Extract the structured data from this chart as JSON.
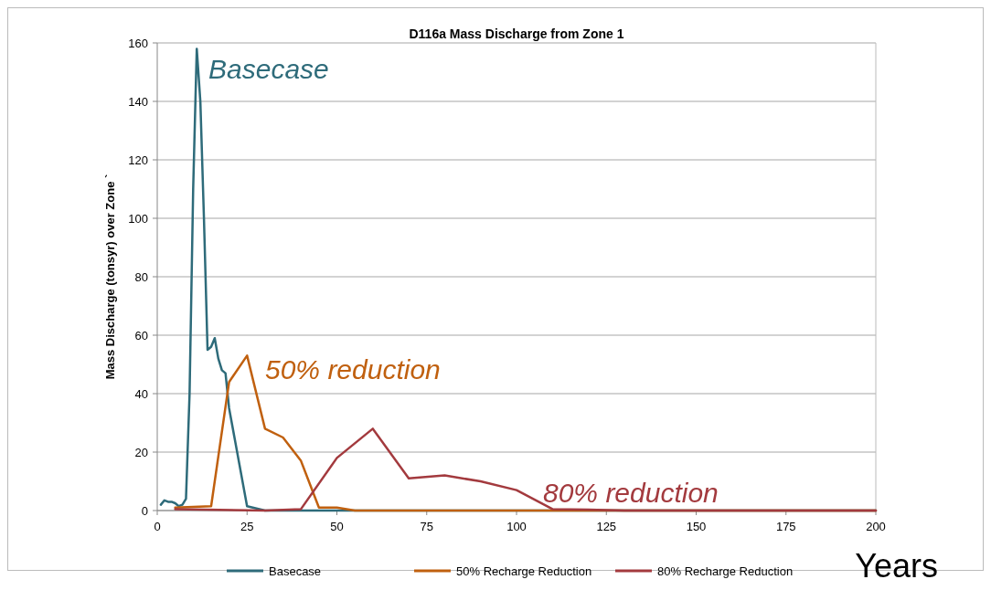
{
  "chart_data": {
    "type": "line",
    "title": "D116a Mass Discharge from Zone 1",
    "xlabel": "Years",
    "ylabel": "Mass Discharge (tonsyr) over Zone `",
    "xlim": [
      0,
      200
    ],
    "xticks": [
      0,
      25,
      50,
      75,
      100,
      125,
      150,
      175,
      200
    ],
    "ylim": [
      0,
      160
    ],
    "yticks": [
      0,
      20,
      40,
      60,
      80,
      100,
      120,
      140,
      160
    ],
    "grid": "y",
    "legend": "bottom",
    "marker": "none",
    "line_style": "solid",
    "series": [
      {
        "name": "Basecase",
        "color": "#2e6b7a",
        "x": [
          1,
          2,
          3,
          4,
          5,
          6,
          7,
          8,
          9,
          10,
          11,
          12,
          13,
          14,
          15,
          16,
          17,
          18,
          19,
          20,
          25,
          30,
          50,
          200
        ],
        "values": [
          2,
          3.5,
          3,
          3,
          2.5,
          1.5,
          2,
          4,
          40,
          110,
          158,
          140,
          100,
          55,
          56,
          59,
          52,
          48,
          47,
          35,
          1.5,
          0,
          0,
          0
        ]
      },
      {
        "name": "50% Recharge Reduction",
        "color": "#c0600f",
        "x": [
          5,
          15,
          20,
          25,
          30,
          35,
          40,
          45,
          50,
          55,
          200
        ],
        "values": [
          1,
          1.5,
          44,
          53,
          28,
          25,
          17,
          1,
          1,
          0,
          0
        ]
      },
      {
        "name": "80% Recharge Reduction",
        "color": "#a33a3e",
        "x": [
          5,
          30,
          40,
          50,
          60,
          70,
          80,
          90,
          100,
          110,
          120,
          130,
          200
        ],
        "values": [
          0.5,
          0,
          0.5,
          18,
          28,
          11,
          12,
          10,
          7,
          0.5,
          0.3,
          0,
          0
        ]
      }
    ],
    "annotations": [
      "Basecase",
      "50% reduction",
      "80% reduction"
    ]
  }
}
